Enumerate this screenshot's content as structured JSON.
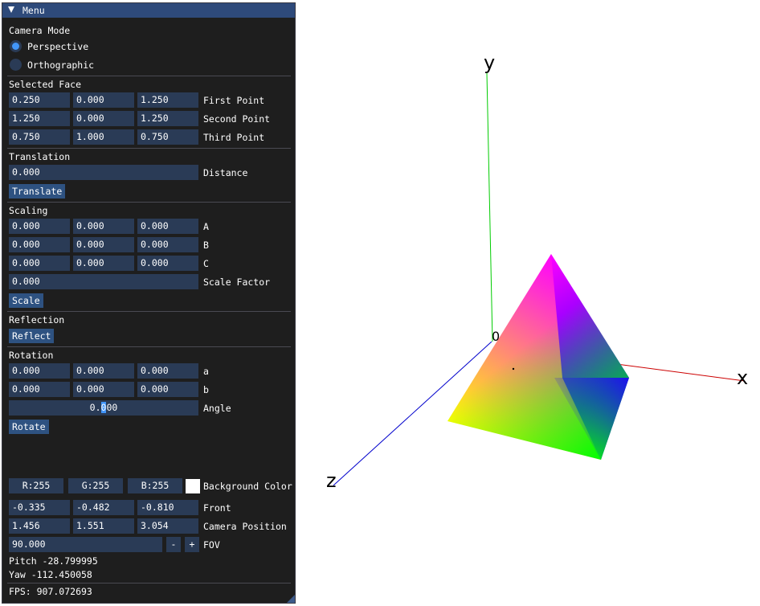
{
  "menu": {
    "title": "Menu"
  },
  "camera_mode": {
    "heading": "Camera Mode",
    "options": [
      "Perspective",
      "Orthographic"
    ],
    "selected": "Perspective"
  },
  "selected_face": {
    "heading": "Selected Face",
    "rows": [
      {
        "values": [
          "0.250",
          "0.000",
          "1.250"
        ],
        "label": "First Point"
      },
      {
        "values": [
          "1.250",
          "0.000",
          "1.250"
        ],
        "label": "Second Point"
      },
      {
        "values": [
          "0.750",
          "1.000",
          "0.750"
        ],
        "label": "Third Point"
      }
    ]
  },
  "translation": {
    "heading": "Translation",
    "distance": "0.000",
    "distance_label": "Distance",
    "button": "Translate"
  },
  "scaling": {
    "heading": "Scaling",
    "rows": [
      {
        "values": [
          "0.000",
          "0.000",
          "0.000"
        ],
        "label": "A"
      },
      {
        "values": [
          "0.000",
          "0.000",
          "0.000"
        ],
        "label": "B"
      },
      {
        "values": [
          "0.000",
          "0.000",
          "0.000"
        ],
        "label": "C"
      }
    ],
    "factor": "0.000",
    "factor_label": "Scale Factor",
    "button": "Scale"
  },
  "reflection": {
    "heading": "Reflection",
    "button": "Reflect"
  },
  "rotation": {
    "heading": "Rotation",
    "rows": [
      {
        "values": [
          "0.000",
          "0.000",
          "0.000"
        ],
        "label": "a"
      },
      {
        "values": [
          "0.000",
          "0.000",
          "0.000"
        ],
        "label": "b"
      }
    ],
    "angle_before": "0.",
    "angle_selected": "0",
    "angle_after": "00",
    "angle_label": "Angle",
    "button": "Rotate"
  },
  "background": {
    "r": "R:255",
    "g": "G:255",
    "b": "B:255",
    "label": "Background Color",
    "color": "#ffffff"
  },
  "front": {
    "values": [
      "-0.335",
      "-0.482",
      "-0.810"
    ],
    "label": "Front"
  },
  "camera_position": {
    "values": [
      "1.456",
      "1.551",
      "3.054"
    ],
    "label": "Camera Position"
  },
  "fov": {
    "value": "90.000",
    "minus": "-",
    "plus": "+",
    "label": "FOV"
  },
  "pitch": "Pitch -28.799995",
  "yaw": "Yaw -112.450058",
  "fps": "FPS: 907.072693",
  "scene": {
    "axis_labels": {
      "x": "x",
      "y": "y",
      "z": "z"
    },
    "axis_colors": {
      "x": "#cc0000",
      "y": "#00cc00",
      "z": "#0000cc"
    },
    "vertex_colors": {
      "top": "#ff00ff",
      "right": "#2000ff",
      "left": "#ffff00",
      "bottom": "#00ff00"
    },
    "origin_label": "0"
  }
}
